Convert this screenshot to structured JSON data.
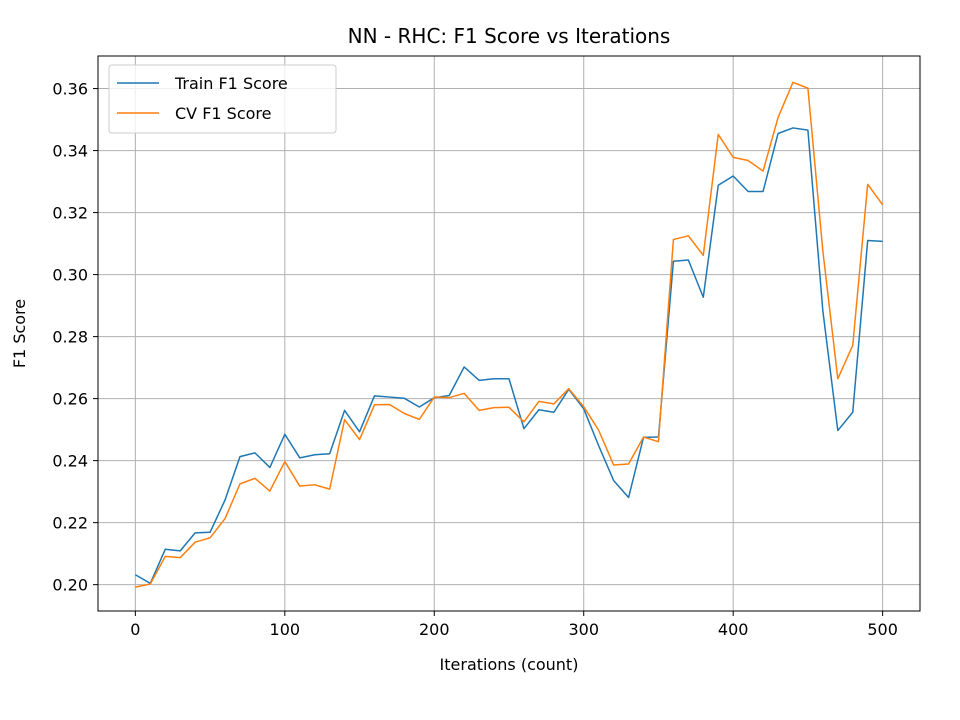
{
  "chart_data": {
    "type": "line",
    "title": "NN - RHC: F1 Score vs Iterations",
    "xlabel": "Iterations (count)",
    "ylabel": "F1 Score",
    "xlim": [
      -25,
      525
    ],
    "ylim": [
      0.1915,
      0.3705
    ],
    "xticks": [
      0,
      100,
      200,
      300,
      400,
      500
    ],
    "yticks": [
      0.2,
      0.22,
      0.24,
      0.26,
      0.28,
      0.3,
      0.32,
      0.34,
      0.36
    ],
    "grid": true,
    "legend_position": "upper-left",
    "x": [
      0,
      10,
      20,
      30,
      40,
      50,
      60,
      70,
      80,
      90,
      100,
      110,
      120,
      130,
      140,
      150,
      160,
      170,
      180,
      190,
      200,
      210,
      220,
      230,
      240,
      250,
      260,
      270,
      280,
      290,
      300,
      310,
      320,
      330,
      340,
      350,
      360,
      370,
      380,
      390,
      400,
      410,
      420,
      430,
      440,
      450,
      460,
      470,
      480,
      490,
      500
    ],
    "series": [
      {
        "name": "Train F1 Score",
        "color": "#1f77b4",
        "values": [
          0.2032,
          0.2004,
          0.2114,
          0.2109,
          0.2167,
          0.2169,
          0.2273,
          0.2413,
          0.2425,
          0.2378,
          0.2485,
          0.2409,
          0.2419,
          0.2422,
          0.2562,
          0.2493,
          0.2609,
          0.2605,
          0.2601,
          0.2573,
          0.2603,
          0.261,
          0.2702,
          0.2659,
          0.2664,
          0.2664,
          0.2503,
          0.2564,
          0.2556,
          0.263,
          0.2567,
          0.2448,
          0.2336,
          0.2281,
          0.2475,
          0.2476,
          0.3043,
          0.3047,
          0.2927,
          0.3288,
          0.3318,
          0.3268,
          0.3268,
          0.3455,
          0.3473,
          0.3466,
          0.2883,
          0.2497,
          0.2556,
          0.311,
          0.3107
        ]
      },
      {
        "name": "CV F1 Score",
        "color": "#ff7f0e",
        "values": [
          0.1992,
          0.2002,
          0.2091,
          0.2087,
          0.2137,
          0.2151,
          0.2213,
          0.2325,
          0.2343,
          0.2302,
          0.2397,
          0.2318,
          0.2322,
          0.2308,
          0.2532,
          0.2468,
          0.258,
          0.2581,
          0.2552,
          0.2533,
          0.2605,
          0.2603,
          0.2617,
          0.2562,
          0.2571,
          0.2572,
          0.2525,
          0.2591,
          0.2583,
          0.2632,
          0.2574,
          0.2498,
          0.2386,
          0.2389,
          0.2476,
          0.2461,
          0.3113,
          0.3125,
          0.3062,
          0.3452,
          0.3378,
          0.3368,
          0.3334,
          0.3506,
          0.362,
          0.3601,
          0.3076,
          0.2664,
          0.2772,
          0.3291,
          0.3225
        ]
      }
    ]
  }
}
